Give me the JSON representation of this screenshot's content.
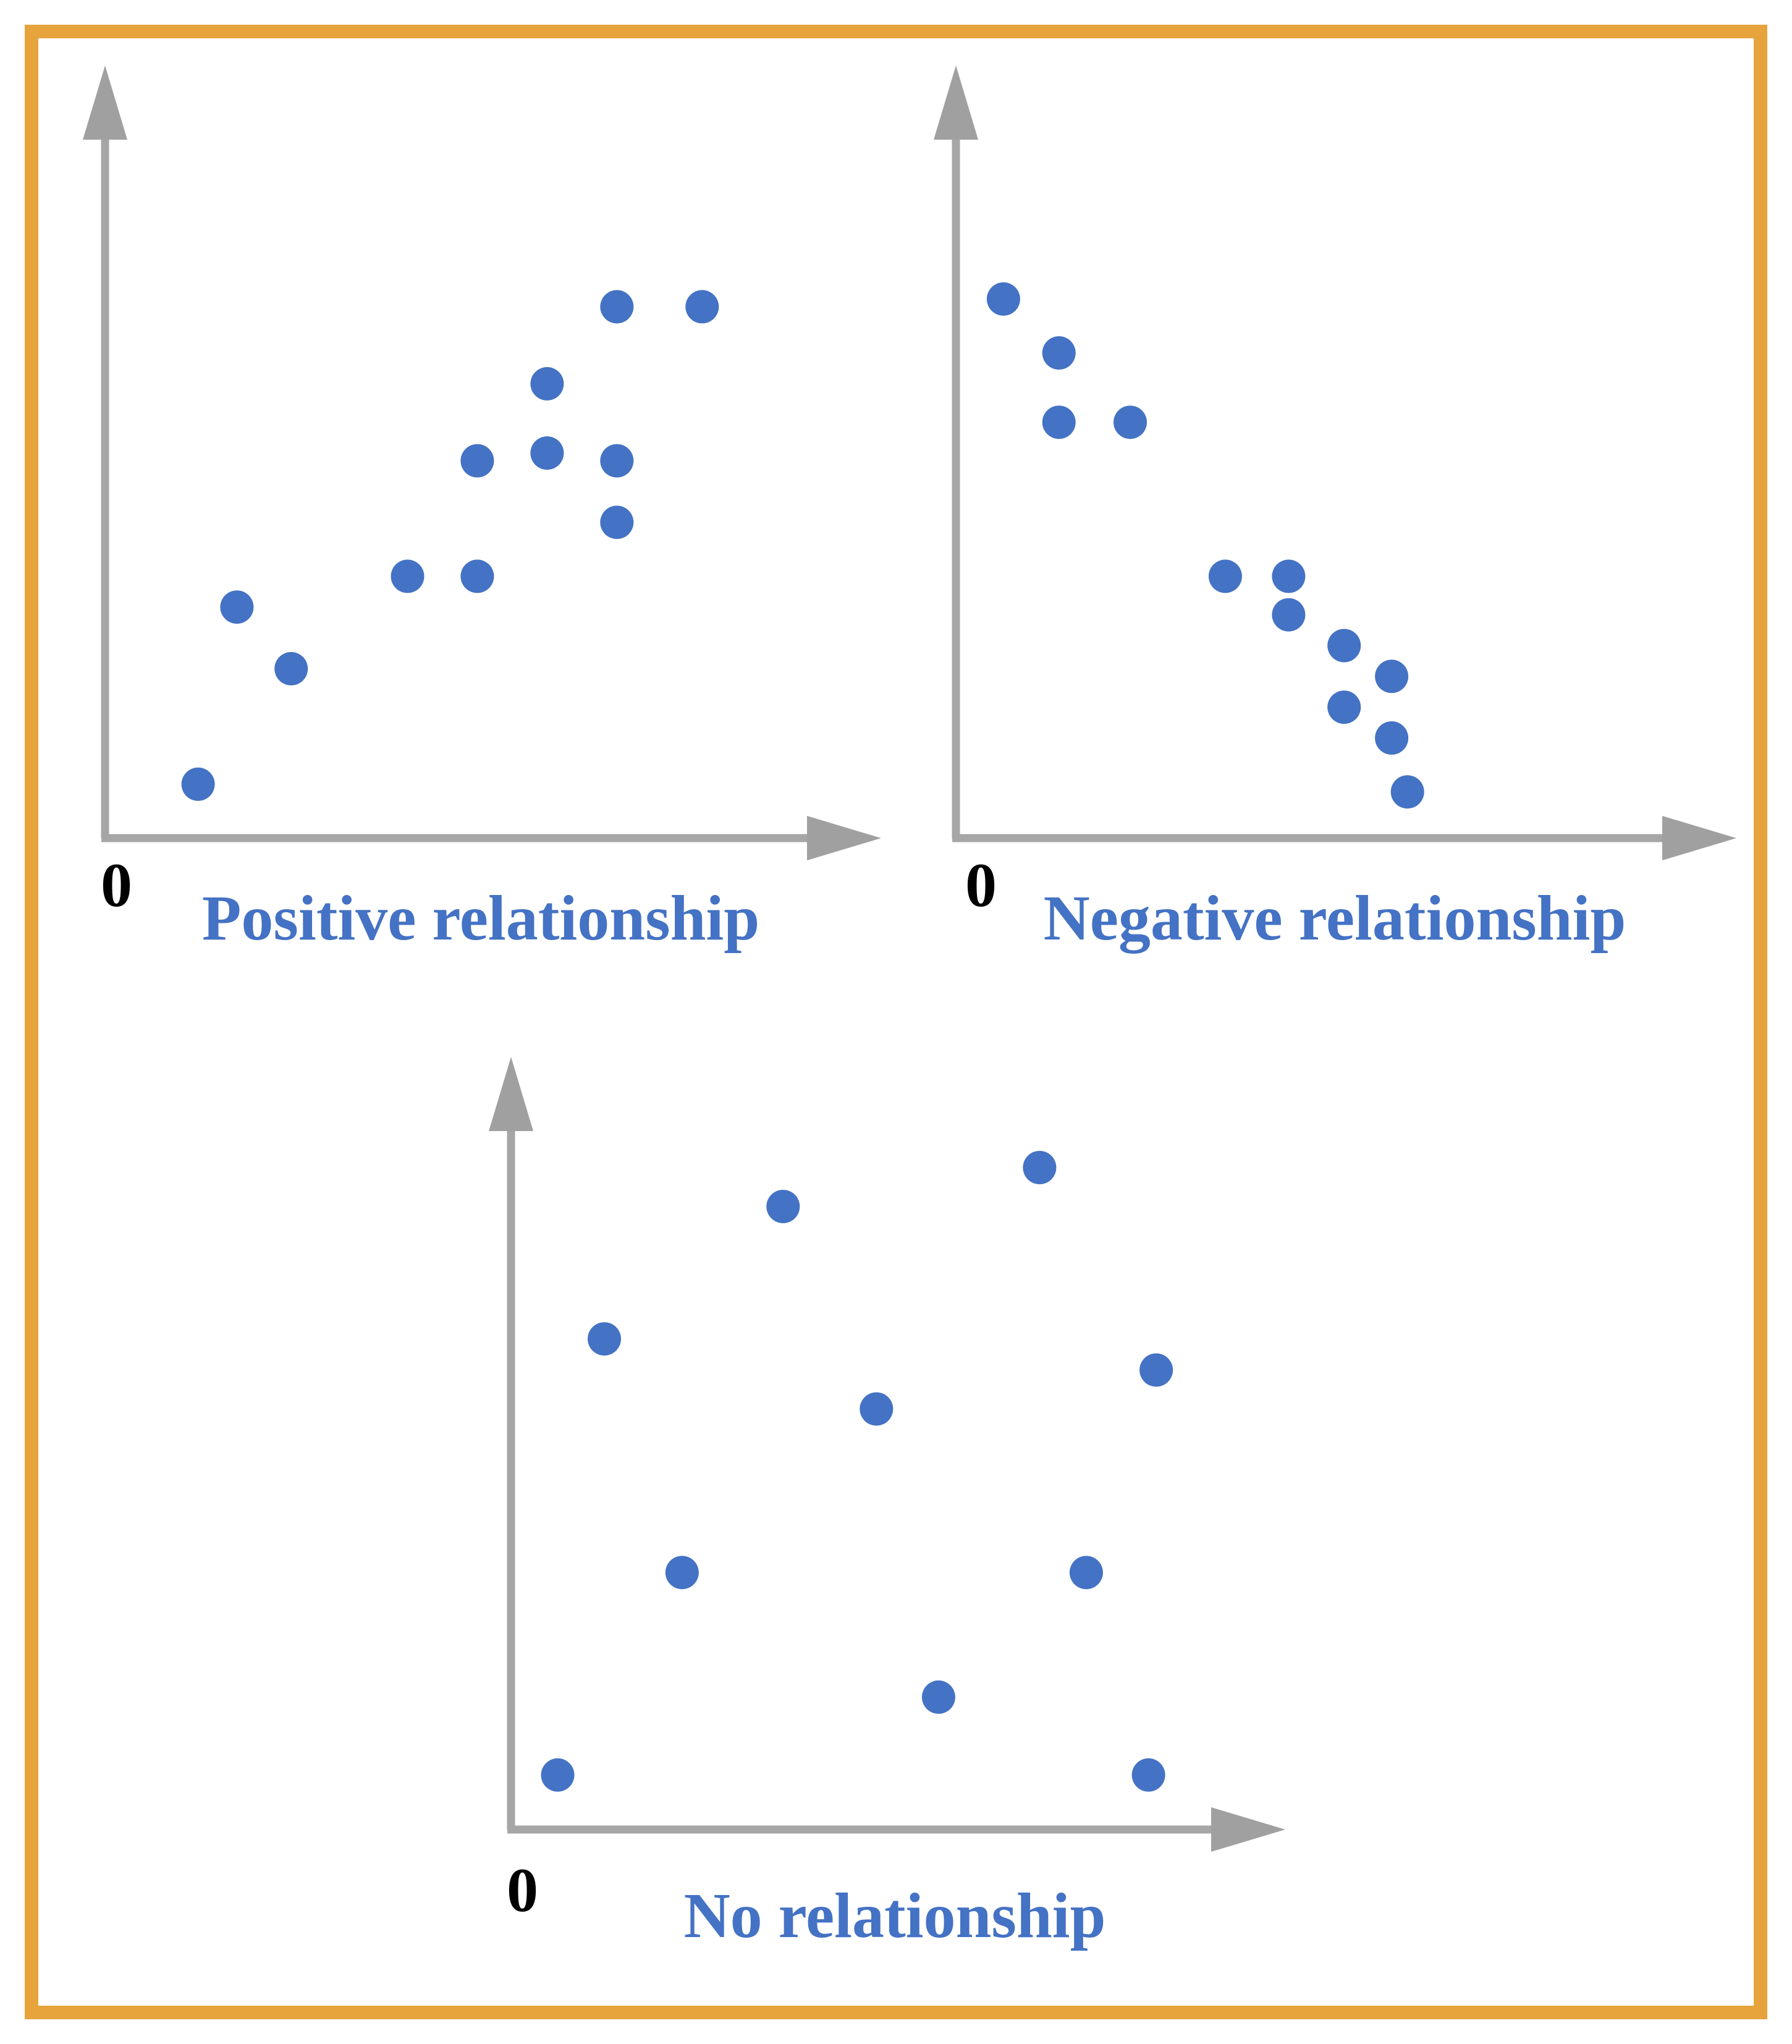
{
  "frame": {
    "border_color": "#E7A33C",
    "background": "#FFFFFF"
  },
  "colors": {
    "dot": "#4472C4",
    "axis": "#A6A6A6",
    "caption_text": "#4472C4",
    "origin_text": "#000000"
  },
  "chart_data": [
    {
      "type": "scatter",
      "title": "Positive relationship",
      "origin_label": "0",
      "xlabel": "",
      "ylabel": "",
      "xlim": [
        0,
        10
      ],
      "ylim": [
        0,
        10
      ],
      "grid": false,
      "legend": "none",
      "axes_style": "gray arrows from origin, no tick marks",
      "points": [
        [
          6.6,
          6.9
        ],
        [
          7.7,
          6.9
        ],
        [
          5.7,
          5.9
        ],
        [
          4.8,
          4.9
        ],
        [
          5.7,
          5.0
        ],
        [
          6.6,
          4.9
        ],
        [
          6.6,
          4.1
        ],
        [
          3.9,
          3.4
        ],
        [
          4.8,
          3.4
        ],
        [
          1.7,
          3.0
        ],
        [
          2.4,
          2.2
        ],
        [
          1.2,
          0.7
        ]
      ]
    },
    {
      "type": "scatter",
      "title": "Negative relationship",
      "origin_label": "0",
      "xlabel": "",
      "ylabel": "",
      "xlim": [
        0,
        10
      ],
      "ylim": [
        0,
        10
      ],
      "grid": false,
      "legend": "none",
      "axes_style": "gray arrows from origin, no tick marks",
      "points": [
        [
          0.6,
          7.0
        ],
        [
          1.3,
          6.3
        ],
        [
          1.3,
          5.4
        ],
        [
          2.2,
          5.4
        ],
        [
          3.4,
          3.4
        ],
        [
          4.2,
          3.4
        ],
        [
          4.2,
          2.9
        ],
        [
          4.9,
          2.5
        ],
        [
          5.5,
          2.1
        ],
        [
          4.9,
          1.7
        ],
        [
          5.5,
          1.3
        ],
        [
          5.7,
          0.6
        ]
      ]
    },
    {
      "type": "scatter",
      "title": "No relationship",
      "origin_label": "0",
      "xlabel": "",
      "ylabel": "",
      "xlim": [
        0,
        10
      ],
      "ylim": [
        0,
        10
      ],
      "grid": false,
      "legend": "none",
      "axes_style": "gray arrows from origin, no tick marks",
      "points": [
        [
          6.8,
          8.5
        ],
        [
          3.5,
          8.0
        ],
        [
          1.2,
          6.3
        ],
        [
          8.3,
          5.9
        ],
        [
          4.7,
          5.4
        ],
        [
          2.2,
          3.3
        ],
        [
          7.4,
          3.3
        ],
        [
          5.5,
          1.7
        ],
        [
          0.6,
          0.7
        ],
        [
          8.2,
          0.7
        ]
      ]
    }
  ]
}
